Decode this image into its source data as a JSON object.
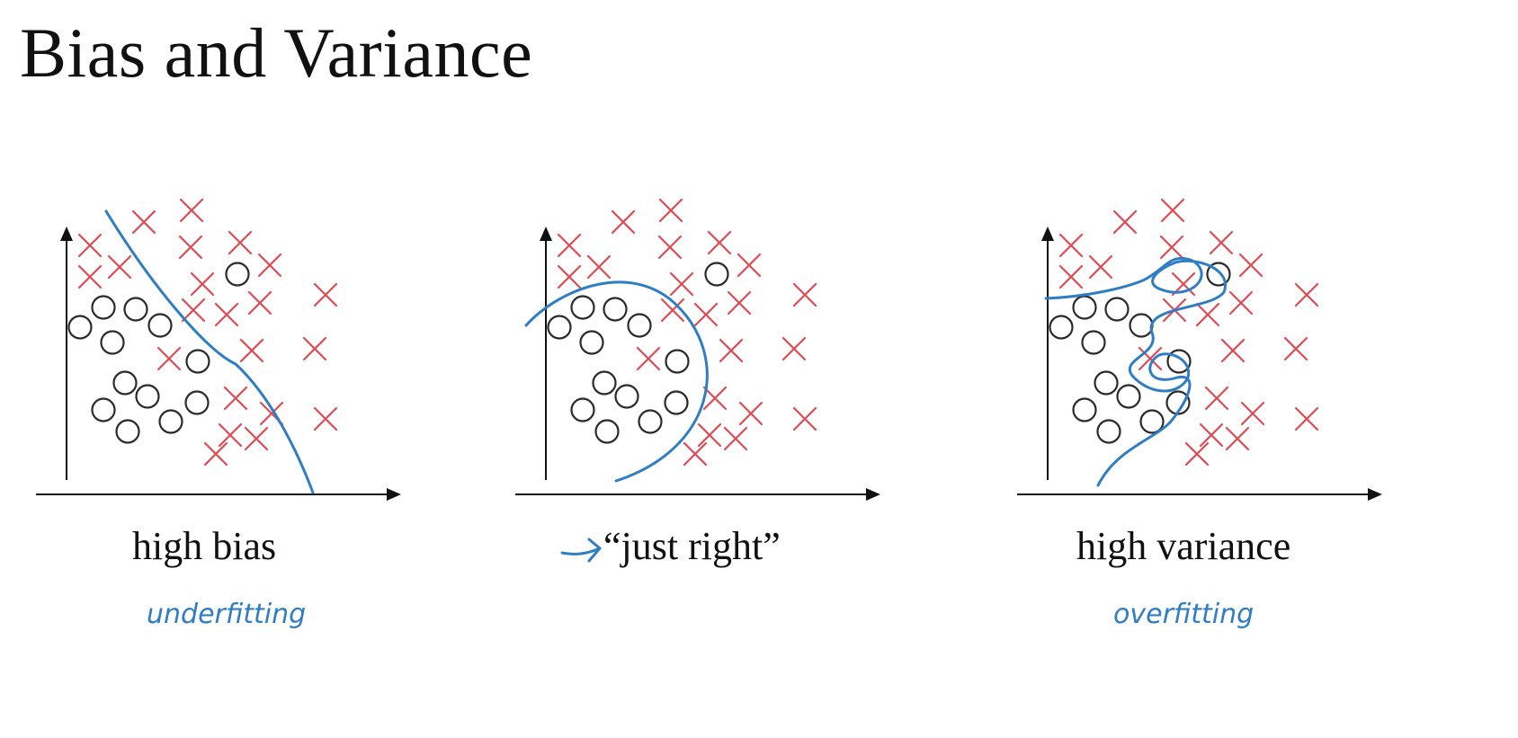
{
  "title": "Bias and Variance",
  "colors": {
    "cross": "#e04a52",
    "circle": "#2a2a2a",
    "pen": "#2f7dc3",
    "text": "#111111"
  },
  "panels": [
    {
      "label": "high bias",
      "annotation": "underfitting",
      "fit": "straight-line"
    },
    {
      "label": "“just right”",
      "annotation": "",
      "fit": "smooth-curve"
    },
    {
      "label": "high variance",
      "annotation": "overfitting",
      "fit": "wiggly-curve"
    }
  ],
  "dataset": {
    "class_x": "cross",
    "class_o": "circle"
  }
}
